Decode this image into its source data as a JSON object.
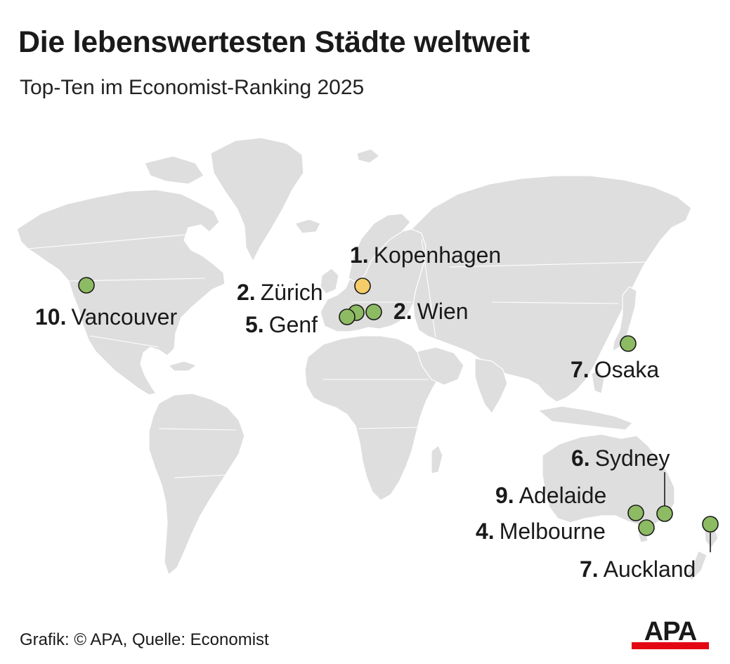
{
  "header": {
    "title": "Die lebenswertesten Städte weltweit",
    "subtitle": "Top-Ten im Economist-Ranking 2025"
  },
  "colors": {
    "land": "#dedede",
    "city": "#8dbb63",
    "city_top": "#f5cd68",
    "text": "#1a1a1a",
    "logo_red": "#e30613"
  },
  "cities": [
    {
      "id": "kopenhagen",
      "rank": "1.",
      "name": "Kopenhagen",
      "top": true
    },
    {
      "id": "zuerich",
      "rank": "2.",
      "name": "Zürich",
      "top": false
    },
    {
      "id": "wien",
      "rank": "2.",
      "name": "Wien",
      "top": false
    },
    {
      "id": "melbourne",
      "rank": "4.",
      "name": "Melbourne",
      "top": false
    },
    {
      "id": "genf",
      "rank": "5.",
      "name": "Genf",
      "top": false
    },
    {
      "id": "sydney",
      "rank": "6.",
      "name": "Sydney",
      "top": false
    },
    {
      "id": "osaka",
      "rank": "7.",
      "name": "Osaka",
      "top": false
    },
    {
      "id": "auckland",
      "rank": "7.",
      "name": "Auckland",
      "top": false
    },
    {
      "id": "adelaide",
      "rank": "9.",
      "name": "Adelaide",
      "top": false
    },
    {
      "id": "vancouver",
      "rank": "10.",
      "name": "Vancouver",
      "top": false
    }
  ],
  "footer": {
    "credit": "Grafik: © APA, Quelle: Economist",
    "logo_text": "APA"
  }
}
